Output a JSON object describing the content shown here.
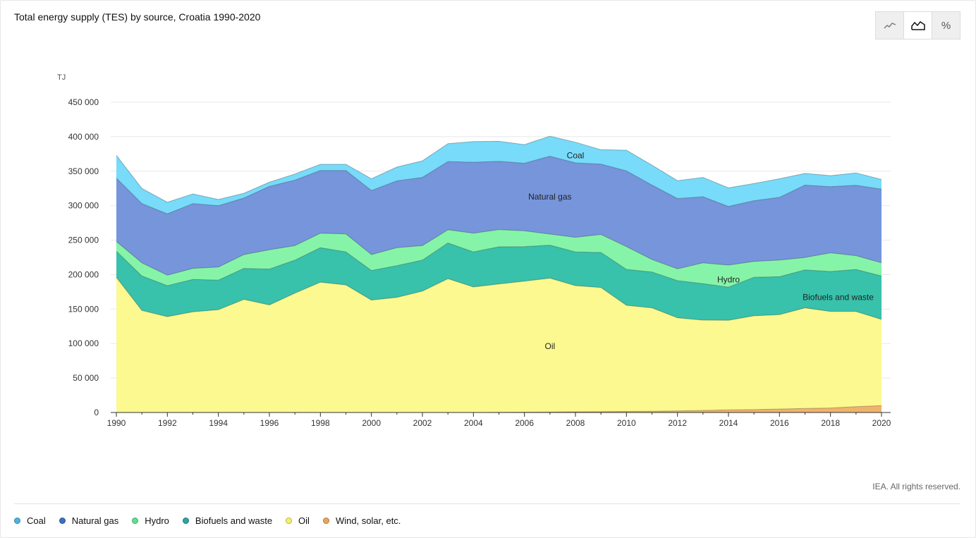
{
  "title": "Total energy supply (TES) by source, Croatia 1990-2020",
  "view_toggle": [
    {
      "name": "line-chart-icon",
      "active": false
    },
    {
      "name": "area-chart-icon",
      "active": true
    },
    {
      "name": "percent",
      "label": "%",
      "active": false
    }
  ],
  "credit": "IEA. All rights reserved.",
  "chart_data": {
    "type": "area",
    "stacked": true,
    "title": "Total energy supply (TES) by source, Croatia 1990-2020",
    "ylabel": "TJ",
    "xlabel": "",
    "ylim": [
      0,
      450000
    ],
    "y_ticks": [
      0,
      50000,
      100000,
      150000,
      200000,
      250000,
      300000,
      350000,
      400000,
      450000
    ],
    "y_tick_labels": [
      "0",
      "50 000",
      "100 000",
      "150 000",
      "200 000",
      "250 000",
      "300 000",
      "350 000",
      "400 000",
      "450 000"
    ],
    "x_ticks": [
      "1990",
      "1992",
      "1994",
      "1996",
      "1998",
      "2000",
      "2002",
      "2004",
      "2006",
      "2008",
      "2010",
      "2012",
      "2014",
      "2016",
      "2018",
      "2020"
    ],
    "grid": true,
    "x": [
      1990,
      1991,
      1992,
      1993,
      1994,
      1995,
      1996,
      1997,
      1998,
      1999,
      2000,
      2001,
      2002,
      2003,
      2004,
      2005,
      2006,
      2007,
      2008,
      2009,
      2010,
      2011,
      2012,
      2013,
      2014,
      2015,
      2016,
      2017,
      2018,
      2019,
      2020
    ],
    "series": [
      {
        "name": "Wind, solar, etc.",
        "color": "#f0b26b",
        "values": [
          0,
          0,
          0,
          0,
          0,
          0,
          0,
          0,
          0,
          0,
          0,
          0,
          0,
          0,
          0,
          300,
          500,
          800,
          1000,
          1200,
          1500,
          1800,
          2300,
          3000,
          3800,
          4200,
          5000,
          5800,
          6500,
          8500,
          10000
        ]
      },
      {
        "name": "Oil",
        "color": "#fbf98f",
        "values": [
          196000,
          148000,
          139000,
          146000,
          149000,
          164000,
          156000,
          173000,
          189000,
          185000,
          163000,
          167000,
          176000,
          194000,
          182000,
          186000,
          190000,
          194000,
          183000,
          180000,
          154000,
          150000,
          135000,
          131000,
          130000,
          136000,
          137000,
          146000,
          140000,
          138000,
          125000
        ]
      },
      {
        "name": "Biofuels and waste",
        "color": "#38c1ab",
        "values": [
          38000,
          50000,
          45000,
          47000,
          43000,
          45000,
          52000,
          48000,
          50000,
          48000,
          43000,
          46000,
          45000,
          52000,
          51000,
          54000,
          50000,
          48000,
          49000,
          51000,
          52000,
          52000,
          54000,
          53000,
          48000,
          56000,
          55000,
          55000,
          58000,
          61000,
          63000
        ]
      },
      {
        "name": "Hydro",
        "color": "#86f4a8",
        "values": [
          14000,
          19000,
          15000,
          16000,
          19000,
          20000,
          28000,
          21000,
          21000,
          26000,
          23000,
          26000,
          21000,
          19000,
          27000,
          25000,
          23000,
          16000,
          21000,
          26000,
          33000,
          18000,
          17000,
          30000,
          32000,
          23000,
          24000,
          18000,
          27000,
          20000,
          19000
        ]
      },
      {
        "name": "Natural gas",
        "color": "#7695db",
        "values": [
          92000,
          86000,
          89000,
          94000,
          89000,
          82000,
          92000,
          95000,
          91000,
          92000,
          93000,
          97000,
          99000,
          99000,
          103000,
          99000,
          98000,
          113000,
          108000,
          102000,
          110000,
          108000,
          102000,
          96000,
          85000,
          88000,
          91000,
          105000,
          96000,
          102000,
          107000
        ]
      },
      {
        "name": "Coal",
        "color": "#77dbf9",
        "values": [
          33000,
          22000,
          17000,
          14000,
          9000,
          7000,
          6000,
          9000,
          9000,
          9000,
          17000,
          20000,
          24000,
          26000,
          30000,
          29000,
          27000,
          29000,
          30000,
          21000,
          30000,
          29000,
          26000,
          28000,
          27000,
          25000,
          27000,
          17000,
          16000,
          18000,
          14000
        ]
      }
    ],
    "annotations": [
      {
        "text": "Coal",
        "series": "Coal",
        "x": 2008,
        "y": 373000
      },
      {
        "text": "Natural gas",
        "series": "Natural gas",
        "x": 2007,
        "y": 313000
      },
      {
        "text": "Hydro",
        "series": "Hydro",
        "x": 2014,
        "y": 193000
      },
      {
        "text": "Biofuels and waste",
        "series": "Biofuels and waste",
        "x": 2018.3,
        "y": 167000
      },
      {
        "text": "Oil",
        "series": "Oil",
        "x": 2007,
        "y": 96000
      }
    ],
    "legend_position": "bottom-left"
  },
  "legend": [
    {
      "label": "Coal",
      "color": "#4db3e3"
    },
    {
      "label": "Natural gas",
      "color": "#3c6fc4"
    },
    {
      "label": "Hydro",
      "color": "#5fe08f"
    },
    {
      "label": "Biofuels and waste",
      "color": "#2aa6a0"
    },
    {
      "label": "Oil",
      "color": "#f7f16a"
    },
    {
      "label": "Wind, solar, etc.",
      "color": "#eba35b"
    }
  ]
}
